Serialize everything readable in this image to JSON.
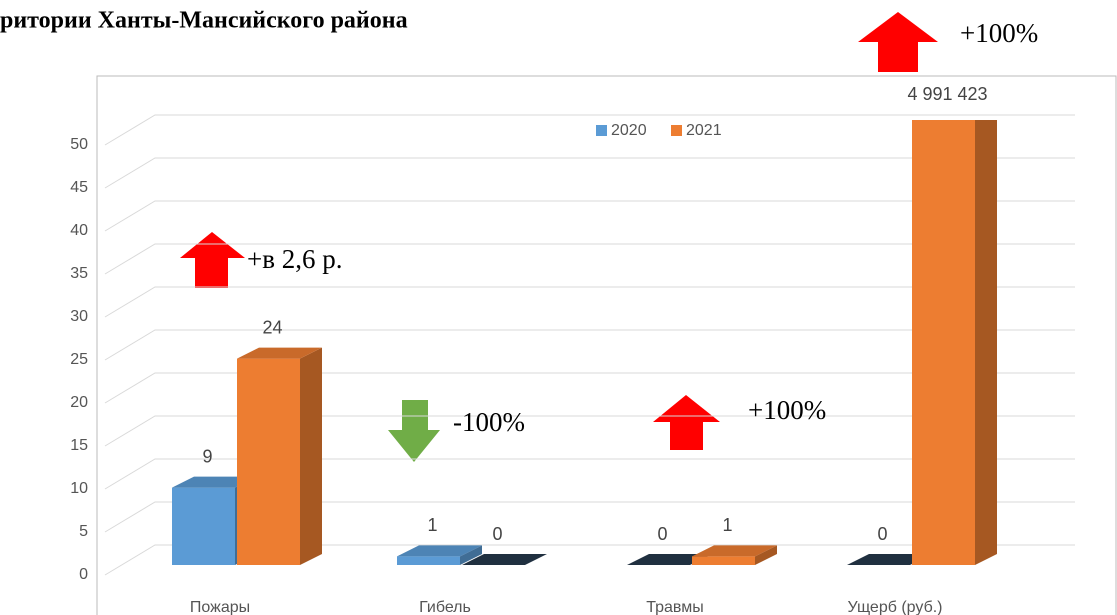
{
  "chart_data": {
    "type": "bar3d",
    "title": "ритории Ханты-Мансийского района",
    "categories": [
      "Пожары",
      "Гибель",
      "Травмы",
      "Ущерб (руб.)"
    ],
    "series": [
      {
        "name": "2020",
        "color": "#5b9bd5",
        "values": [
          9,
          1,
          0,
          0
        ]
      },
      {
        "name": "2021",
        "color": "#ed7d31",
        "values": [
          24,
          0,
          1,
          4991423
        ],
        "value_labels": [
          "24",
          "0",
          "1",
          "4 991 423"
        ]
      }
    ],
    "ylim": [
      0,
      50
    ],
    "yticks": [
      0,
      5,
      10,
      15,
      20,
      25,
      30,
      35,
      40,
      45,
      50
    ],
    "grid": true,
    "legend": "top",
    "annotations": [
      "+в 2,6 р.",
      "-100%",
      "+100%",
      "+100%"
    ]
  }
}
